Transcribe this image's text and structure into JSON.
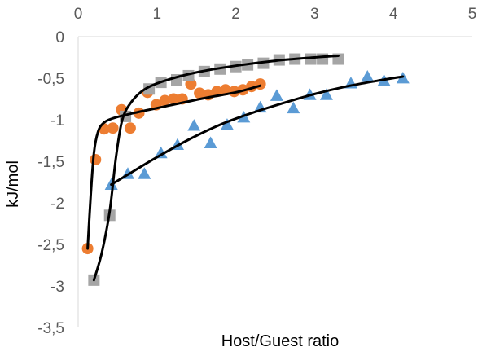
{
  "chart_data": {
    "type": "scatter",
    "title": "",
    "xlabel": "Host/Guest ratio",
    "ylabel": "kJ/mol",
    "xlim": [
      0,
      5
    ],
    "ylim": [
      -3.5,
      0
    ],
    "x_axis_position": "top",
    "x_ticks": [
      0,
      1,
      2,
      3,
      4,
      5
    ],
    "y_ticks": [
      0,
      -0.5,
      -1,
      -1.5,
      -2,
      -2.5,
      -3,
      -3.5
    ],
    "x_tick_labels": [
      "0",
      "1",
      "2",
      "3",
      "4",
      "5"
    ],
    "y_tick_labels": [
      "0",
      "-0,5",
      "-1",
      "-1,5",
      "-2",
      "-2,5",
      "-3",
      "-3,5"
    ],
    "grid": false,
    "legend": "none",
    "series": [
      {
        "marker": "circle",
        "color": "#ED7D31",
        "points": [
          [
            0.12,
            -2.55
          ],
          [
            0.22,
            -1.48
          ],
          [
            0.33,
            -1.11
          ],
          [
            0.44,
            -1.1
          ],
          [
            0.55,
            -0.88
          ],
          [
            0.66,
            -1.1
          ],
          [
            0.77,
            -0.92
          ],
          [
            0.88,
            -0.67
          ],
          [
            0.99,
            -0.82
          ],
          [
            1.1,
            -0.77
          ],
          [
            1.21,
            -0.75
          ],
          [
            1.32,
            -0.75
          ],
          [
            1.43,
            -0.57
          ],
          [
            1.54,
            -0.68
          ],
          [
            1.65,
            -0.7
          ],
          [
            1.76,
            -0.66
          ],
          [
            1.87,
            -0.64
          ],
          [
            1.98,
            -0.66
          ],
          [
            2.09,
            -0.64
          ],
          [
            2.2,
            -0.6
          ],
          [
            2.31,
            -0.57
          ]
        ],
        "fit": [
          [
            0.12,
            -2.55
          ],
          [
            0.16,
            -1.9
          ],
          [
            0.2,
            -1.4
          ],
          [
            0.25,
            -1.15
          ],
          [
            0.32,
            -1.04
          ],
          [
            0.45,
            -0.98
          ],
          [
            0.7,
            -0.92
          ],
          [
            1.1,
            -0.84
          ],
          [
            1.6,
            -0.74
          ],
          [
            2.0,
            -0.67
          ],
          [
            2.31,
            -0.59
          ]
        ]
      },
      {
        "marker": "square",
        "color": "#A5A5A5",
        "points": [
          [
            0.2,
            -2.93
          ],
          [
            0.4,
            -2.15
          ],
          [
            0.6,
            -0.96
          ],
          [
            0.9,
            -0.63
          ],
          [
            1.05,
            -0.55
          ],
          [
            1.25,
            -0.52
          ],
          [
            1.4,
            -0.47
          ],
          [
            1.6,
            -0.42
          ],
          [
            1.8,
            -0.39
          ],
          [
            2.0,
            -0.36
          ],
          [
            2.15,
            -0.34
          ],
          [
            2.35,
            -0.32
          ],
          [
            2.55,
            -0.28
          ],
          [
            2.75,
            -0.27
          ],
          [
            2.95,
            -0.27
          ],
          [
            3.1,
            -0.27
          ],
          [
            3.3,
            -0.27
          ]
        ],
        "fit": [
          [
            0.2,
            -2.93
          ],
          [
            0.3,
            -2.6
          ],
          [
            0.4,
            -2.1
          ],
          [
            0.48,
            -1.45
          ],
          [
            0.56,
            -1.0
          ],
          [
            0.68,
            -0.78
          ],
          [
            0.85,
            -0.63
          ],
          [
            1.1,
            -0.53
          ],
          [
            1.5,
            -0.43
          ],
          [
            2.0,
            -0.35
          ],
          [
            2.5,
            -0.29
          ],
          [
            3.0,
            -0.25
          ],
          [
            3.3,
            -0.23
          ]
        ]
      },
      {
        "marker": "triangle",
        "color": "#5B9BD5",
        "points": [
          [
            0.42,
            -1.78
          ],
          [
            0.63,
            -1.65
          ],
          [
            0.84,
            -1.65
          ],
          [
            1.05,
            -1.4
          ],
          [
            1.26,
            -1.3
          ],
          [
            1.47,
            -1.07
          ],
          [
            1.68,
            -1.28
          ],
          [
            1.89,
            -1.06
          ],
          [
            2.1,
            -0.97
          ],
          [
            2.31,
            -0.85
          ],
          [
            2.52,
            -0.71
          ],
          [
            2.73,
            -0.86
          ],
          [
            2.94,
            -0.7
          ],
          [
            3.15,
            -0.7
          ],
          [
            3.46,
            -0.56
          ],
          [
            3.67,
            -0.48
          ],
          [
            3.88,
            -0.53
          ],
          [
            4.12,
            -0.5
          ]
        ],
        "fit": [
          [
            0.42,
            -1.78
          ],
          [
            0.7,
            -1.62
          ],
          [
            1.0,
            -1.45
          ],
          [
            1.4,
            -1.24
          ],
          [
            1.8,
            -1.06
          ],
          [
            2.2,
            -0.92
          ],
          [
            2.6,
            -0.8
          ],
          [
            3.0,
            -0.69
          ],
          [
            3.4,
            -0.6
          ],
          [
            3.8,
            -0.53
          ],
          [
            4.12,
            -0.48
          ]
        ]
      }
    ]
  }
}
